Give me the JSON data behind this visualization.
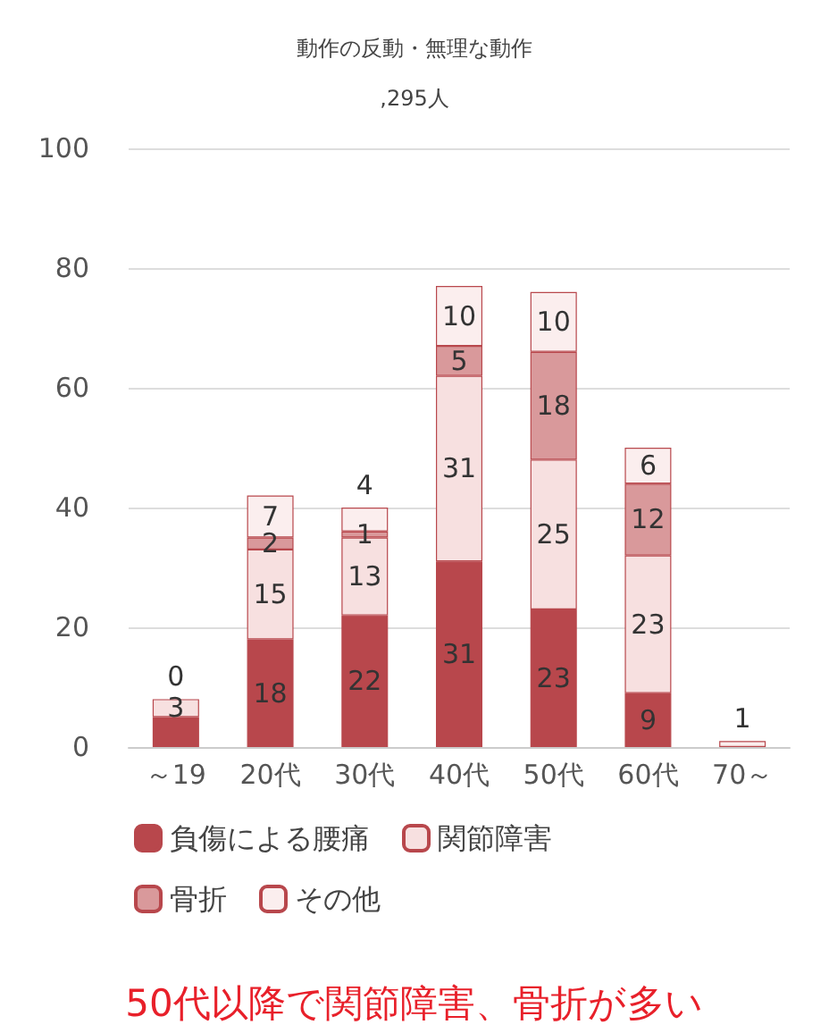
{
  "chart_data": {
    "type": "bar",
    "title": "動作の反動・無理な動作",
    "subtitle": ",295人",
    "stacked": true,
    "categories": [
      "～19",
      "20代",
      "30代",
      "40代",
      "50代",
      "60代",
      "70～"
    ],
    "series": [
      {
        "name": "負傷による腰痛",
        "color": "#b8474c",
        "values": [
          5,
          18,
          22,
          31,
          23,
          9,
          0
        ],
        "value_labels": [
          null,
          "18",
          "22",
          "31",
          "23",
          "9",
          null
        ]
      },
      {
        "name": "関節障害",
        "color": "#f7e0e0",
        "values": [
          3,
          15,
          13,
          31,
          25,
          23,
          0
        ],
        "value_labels": [
          "3",
          "15",
          "13",
          "31",
          "25",
          "23",
          null
        ]
      },
      {
        "name": "骨折",
        "color": "#d9999b",
        "values": [
          0,
          2,
          1,
          5,
          18,
          12,
          0
        ],
        "value_labels": [
          null,
          "2",
          "1",
          "5",
          "18",
          "12",
          null
        ]
      },
      {
        "name": "その他",
        "color": "#fbeeee",
        "values": [
          0,
          7,
          4,
          10,
          10,
          6,
          1
        ],
        "value_labels": [
          "0",
          "7",
          "4",
          "10",
          "10",
          "6",
          "1"
        ]
      }
    ],
    "ylim": [
      0,
      100
    ],
    "yticks": [
      0,
      20,
      40,
      60,
      80,
      100
    ],
    "grid": "y",
    "legend": "bottom",
    "annotations": [
      "50代以降で関節障害、骨折が多い"
    ]
  }
}
